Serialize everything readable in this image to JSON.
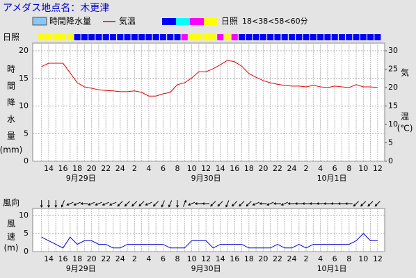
{
  "title": "アメダス地点名：木更津",
  "chart_data": [
    {
      "type": "line",
      "categories": [
        null,
        "14",
        null,
        "16",
        null,
        "18",
        null,
        "20",
        null,
        "22",
        null,
        "24",
        null,
        "2",
        null,
        "4",
        null,
        "6",
        null,
        "8",
        null,
        "10",
        null,
        "12",
        null,
        "14",
        null,
        "16",
        null,
        "18",
        null,
        "20",
        null,
        "22",
        null,
        "24",
        null,
        "2",
        null,
        "4",
        null,
        "6",
        null,
        "8",
        null,
        "10",
        null,
        "12"
      ],
      "date_labels": [
        "9月29日",
        "9月30日",
        "10月1日"
      ],
      "y_label": [
        "時",
        "間",
        "降",
        "水",
        "量",
        "(mm)"
      ],
      "y2_label": [
        "気",
        "温",
        "(℃)"
      ],
      "ylim": [
        0,
        20
      ],
      "yticks": [
        0,
        5,
        10,
        15,
        20
      ],
      "y2lim": [
        0,
        30
      ],
      "y2ticks": [
        0,
        5,
        10,
        15,
        20,
        25,
        30
      ],
      "grid": true,
      "series": [
        {
          "name": "時間降水量",
          "type": "bar",
          "color": "#88c8f8",
          "axis": "y",
          "values": [
            0,
            0,
            0,
            0,
            0,
            0,
            0,
            0,
            0,
            0,
            0,
            0,
            0,
            0,
            0,
            0,
            0,
            0,
            0,
            0,
            0,
            0,
            0,
            0,
            0,
            0,
            0,
            0,
            0,
            0,
            0,
            0,
            0,
            0,
            0,
            0,
            0,
            0,
            0,
            0,
            0,
            0,
            0,
            0,
            0,
            0,
            0,
            0
          ]
        },
        {
          "name": "気温",
          "type": "line",
          "color": "#e00000",
          "axis": "y2",
          "values": [
            25.7,
            26.6,
            26.6,
            26.6,
            24.0,
            21.3,
            20.2,
            19.8,
            19.4,
            19.2,
            19.1,
            18.9,
            18.9,
            19.1,
            18.7,
            17.7,
            17.7,
            18.3,
            18.7,
            20.8,
            21.3,
            22.6,
            24.3,
            24.3,
            25.1,
            26.2,
            27.4,
            27.0,
            25.8,
            23.8,
            22.8,
            21.9,
            21.3,
            20.9,
            20.6,
            20.4,
            20.4,
            20.2,
            20.6,
            20.2,
            20.0,
            20.4,
            20.2,
            20.0,
            20.8,
            20.2,
            20.2,
            20.0
          ]
        }
      ],
      "sunshine": {
        "name": "日照",
        "scale_label": "18<38<58<60分",
        "colors": [
          "#0000ff",
          "#00ffff",
          "#ff00ff",
          "#ffff00"
        ],
        "values": [
          3,
          3,
          3,
          3,
          3,
          0,
          0,
          0,
          0,
          0,
          0,
          0,
          0,
          0,
          0,
          0,
          0,
          0,
          0,
          0,
          2,
          3,
          3,
          3,
          3,
          2,
          3,
          2,
          0,
          0,
          0,
          0,
          0,
          0,
          0,
          0,
          0,
          0,
          0,
          0,
          0,
          0,
          0,
          0,
          0,
          0,
          0,
          0
        ]
      }
    },
    {
      "type": "line",
      "categories": [
        null,
        "14",
        null,
        "16",
        null,
        "18",
        null,
        "20",
        null,
        "22",
        null,
        "24",
        null,
        "2",
        null,
        "4",
        null,
        "6",
        null,
        "8",
        null,
        "10",
        null,
        "12",
        null,
        "14",
        null,
        "16",
        null,
        "18",
        null,
        "20",
        null,
        "22",
        null,
        "24",
        null,
        "2",
        null,
        "4",
        null,
        "6",
        null,
        "8",
        null,
        "10",
        null,
        "12"
      ],
      "date_labels": [
        "9月29日",
        "9月30日",
        "10月1日"
      ],
      "y_label": [
        "風",
        "速",
        "(m)"
      ],
      "ylim": [
        0,
        10
      ],
      "yticks": [
        0,
        5,
        10
      ],
      "grid": true,
      "series": [
        {
          "type": "line",
          "color": "#0000cc",
          "values": [
            4,
            3,
            2,
            1,
            4,
            2,
            3,
            3,
            2,
            2,
            1,
            1,
            2,
            2,
            2,
            2,
            2,
            2,
            1,
            1,
            1,
            3,
            3,
            3,
            1,
            2,
            2,
            2,
            2,
            1,
            1,
            1,
            1,
            2,
            1,
            1,
            2,
            1,
            2,
            2,
            2,
            2,
            2,
            2,
            3,
            5,
            3,
            3
          ]
        }
      ],
      "directions": {
        "name": "風向",
        "values": [
          0,
          0,
          0,
          22.5,
          67.5,
          67.5,
          90,
          67.5,
          67.5,
          67.5,
          67.5,
          45,
          45,
          45,
          45,
          67.5,
          45,
          22.5,
          22.5,
          0,
          202.5,
          67.5,
          90,
          90,
          45,
          45,
          22.5,
          45,
          45,
          45,
          67.5,
          90,
          67.5,
          90,
          67.5,
          90,
          90,
          90,
          90,
          90,
          90,
          90,
          90,
          90,
          45,
          45,
          45,
          45
        ]
      }
    }
  ]
}
